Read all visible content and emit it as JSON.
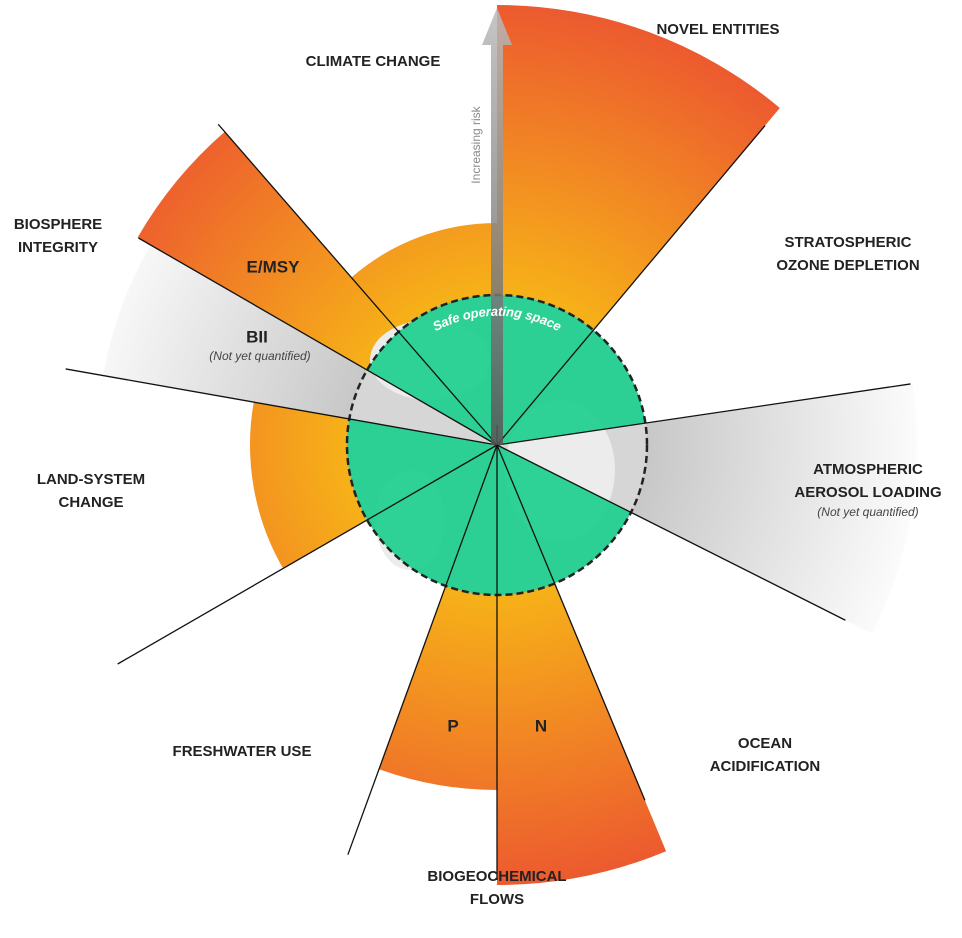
{
  "diagram": {
    "risk_arrow_label": "Increasing risk",
    "safe_space_label": "Safe operating space",
    "boundaries": [
      {
        "lines": [
          "CLIMATE CHANGE"
        ]
      },
      {
        "lines": [
          "NOVEL ENTITIES"
        ]
      },
      {
        "lines": [
          "STRATOSPHERIC",
          "OZONE DEPLETION"
        ]
      },
      {
        "lines": [
          "ATMOSPHERIC",
          "AEROSOL LOADING"
        ],
        "note": "(Not yet quantified)"
      },
      {
        "lines": [
          "OCEAN",
          "ACIDIFICATION"
        ]
      },
      {
        "lines": [
          "BIOGEOCHEMICAL",
          "FLOWS"
        ]
      },
      {
        "lines": [
          "FRESHWATER USE"
        ]
      },
      {
        "lines": [
          "LAND-SYSTEM",
          "CHANGE"
        ]
      },
      {
        "lines": [
          "BIOSPHERE",
          "INTEGRITY"
        ]
      }
    ],
    "sub_labels": [
      {
        "text": "E/MSY"
      },
      {
        "text": "BII",
        "note": "(Not yet quantified)"
      },
      {
        "text": "P"
      },
      {
        "text": "N"
      }
    ]
  }
}
